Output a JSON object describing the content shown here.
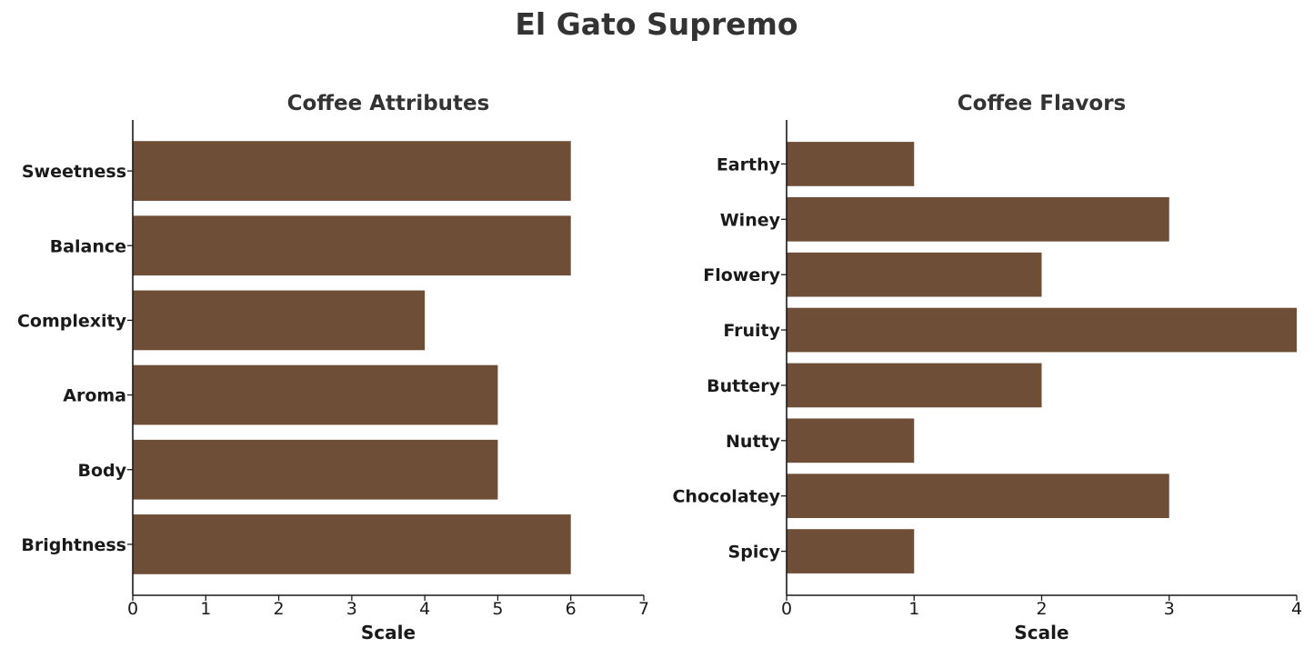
{
  "figure_title": "El Gato Supremo",
  "bar_color": "#6f4e37",
  "chart_data": [
    {
      "type": "bar",
      "orientation": "horizontal",
      "title": "Coffee Attributes",
      "xlabel": "Scale",
      "ylabel": "",
      "categories": [
        "Sweetness",
        "Balance",
        "Complexity",
        "Aroma",
        "Body",
        "Brightness"
      ],
      "values": [
        6,
        6,
        4,
        5,
        5,
        6
      ],
      "xlim": [
        0,
        7
      ],
      "xticks": [
        0,
        1,
        2,
        3,
        4,
        5,
        6,
        7
      ],
      "grid": false,
      "legend": "none"
    },
    {
      "type": "bar",
      "orientation": "horizontal",
      "title": "Coffee Flavors",
      "xlabel": "Scale",
      "ylabel": "",
      "categories": [
        "Earthy",
        "Winey",
        "Flowery",
        "Fruity",
        "Buttery",
        "Nutty",
        "Chocolatey",
        "Spicy"
      ],
      "values": [
        1,
        3,
        2,
        4,
        2,
        1,
        3,
        1
      ],
      "xlim": [
        0,
        4
      ],
      "xticks": [
        0,
        1,
        2,
        3,
        4
      ],
      "grid": false,
      "legend": "none"
    }
  ]
}
